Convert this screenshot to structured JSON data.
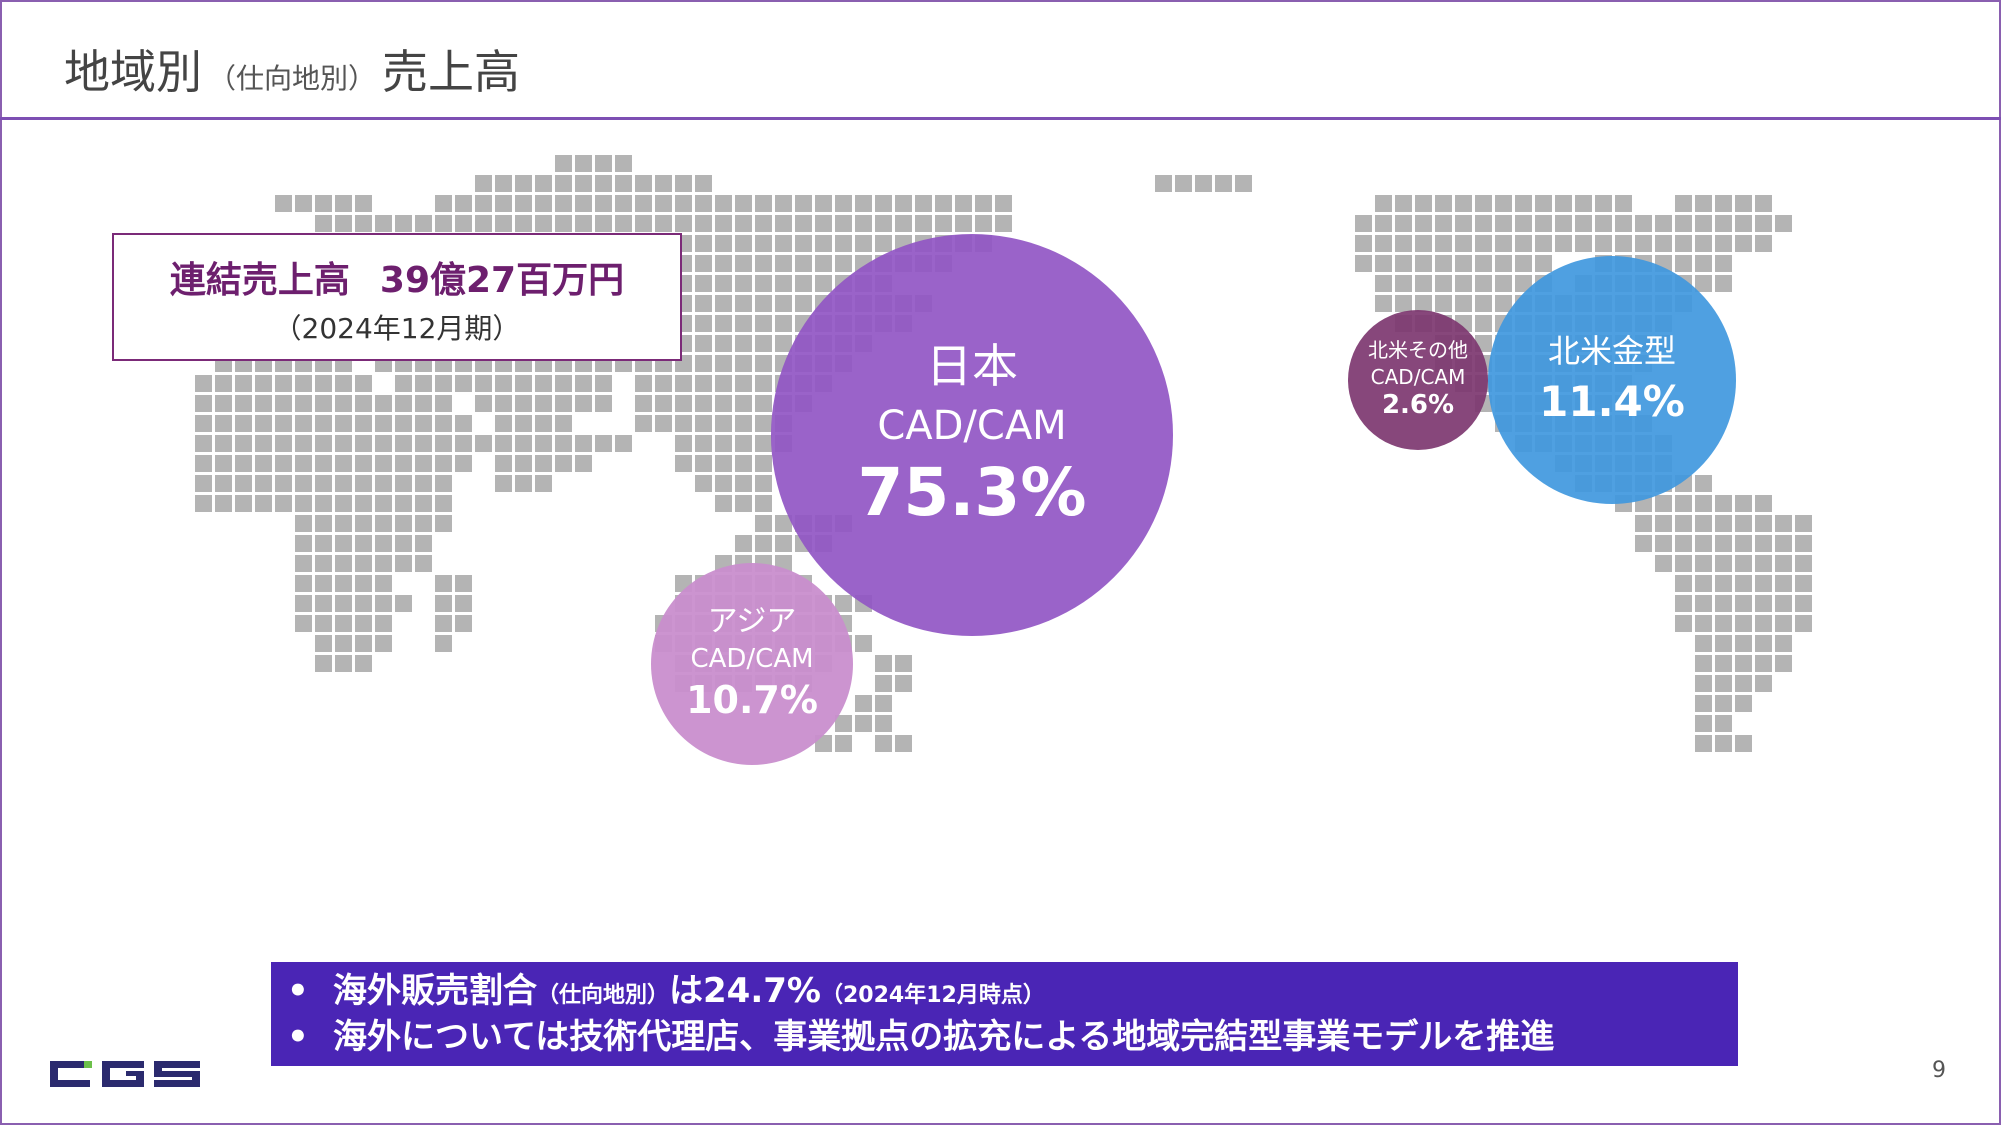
{
  "header": {
    "title_main": "地域別",
    "title_sub": "（仕向地別）",
    "title_end": "売上高"
  },
  "summary": {
    "label": "連結売上高",
    "amount": "39億27百万円",
    "period": "（2024年12月期）"
  },
  "regions": [
    {
      "line1": "日本",
      "line2": "CAD/CAM",
      "share": "75.3%",
      "color": "#9156c4"
    },
    {
      "line1": "アジア",
      "line2": "CAD/CAM",
      "share": "10.7%",
      "color": "#c98ecd"
    },
    {
      "line1": "北米その他",
      "line2": "CAD/CAM",
      "share": "2.6%",
      "color": "#7d3770"
    },
    {
      "line1": "北米金型",
      "share": "11.4%",
      "color": "#4098de"
    }
  ],
  "banner": {
    "bullet1": {
      "text_a": "海外販売割合",
      "text_small": "（仕向地別）",
      "text_b": "は24.7%",
      "text_note": "（2024年12月時点）"
    },
    "bullet2": "海外については技術代理店、事業拠点の拡充による地域完結型事業モデルを推進",
    "bullet_char": "•"
  },
  "logo": {
    "icon": "cgs-logo",
    "color": "#2b2a6e",
    "accent": "#6cc04a"
  },
  "page_number": "9"
}
